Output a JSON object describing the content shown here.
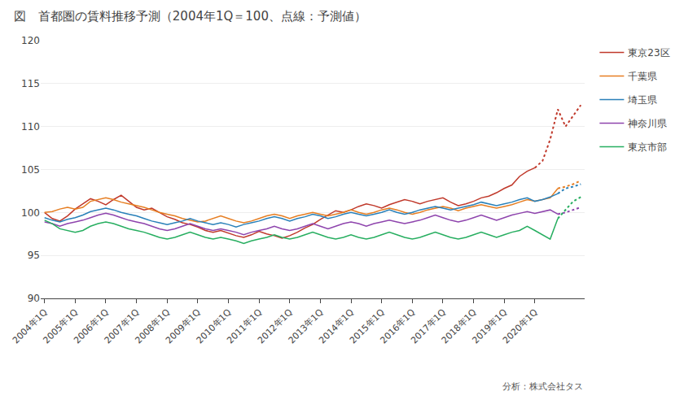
{
  "chart_data": {
    "type": "line",
    "title": "図　首都圏の賃料推移予測（2004年1Q＝100、点線：予測値）",
    "annotations": [
      "分析：株式会社タス"
    ],
    "categories": [
      "2004年1Q",
      null,
      null,
      null,
      "2005年1Q",
      null,
      null,
      null,
      "2006年1Q",
      null,
      null,
      null,
      "2007年1Q",
      null,
      null,
      null,
      "2008年1Q",
      null,
      null,
      null,
      "2009年1Q",
      null,
      null,
      null,
      "2010年1Q",
      null,
      null,
      null,
      "2011年1Q",
      null,
      null,
      null,
      "2012年1Q",
      null,
      null,
      null,
      "2013年1Q",
      null,
      null,
      null,
      "2014年1Q",
      null,
      null,
      null,
      "2015年1Q",
      null,
      null,
      null,
      "2016年1Q",
      null,
      null,
      null,
      "2017年1Q",
      null,
      null,
      null,
      "2018年1Q",
      null,
      null,
      null,
      "2019年1Q",
      null,
      null,
      null,
      "2020年1Q",
      null,
      null,
      null,
      null,
      null,
      null
    ],
    "ylim": [
      90,
      120
    ],
    "yticks": [
      90,
      95,
      100,
      105,
      110,
      115,
      120
    ],
    "grid": true,
    "legend": "right",
    "series": [
      {
        "name": "東京23区",
        "color": "#c0392b",
        "line_style": "solid",
        "values": [
          100.0,
          99.3,
          99.0,
          99.6,
          100.4,
          101.0,
          101.6,
          101.3,
          100.9,
          101.5,
          102.0,
          101.3,
          100.6,
          100.3,
          100.5,
          100.0,
          99.5,
          99.2,
          98.8,
          98.6,
          98.3,
          97.9,
          97.7,
          97.9,
          97.6,
          97.3,
          97.1,
          97.4,
          97.8,
          97.5,
          97.3,
          97.0,
          97.3,
          97.7,
          98.2,
          98.6,
          99.2,
          99.7,
          100.2,
          100.0,
          100.3,
          100.7,
          101.0,
          100.8,
          100.5,
          100.9,
          101.2,
          101.5,
          101.3,
          101.0,
          101.3,
          101.5,
          101.7,
          101.2,
          100.8,
          101.0,
          101.3,
          101.7,
          101.9,
          102.3,
          102.8,
          103.2,
          104.2,
          104.8,
          105.2,
          null,
          null,
          null,
          null,
          null,
          null
        ]
      },
      {
        "name": "東京23区",
        "color": "#c0392b",
        "line_style": "dotted",
        "values": [
          null,
          null,
          null,
          null,
          null,
          null,
          null,
          null,
          null,
          null,
          null,
          null,
          null,
          null,
          null,
          null,
          null,
          null,
          null,
          null,
          null,
          null,
          null,
          null,
          null,
          null,
          null,
          null,
          null,
          null,
          null,
          null,
          null,
          null,
          null,
          null,
          null,
          null,
          null,
          null,
          null,
          null,
          null,
          null,
          null,
          null,
          null,
          null,
          null,
          null,
          null,
          null,
          null,
          null,
          null,
          null,
          null,
          null,
          null,
          null,
          null,
          null,
          null,
          null,
          105.2,
          106.0,
          108.5,
          112.0,
          110.0,
          111.2,
          112.5
        ]
      },
      {
        "name": "千葉県",
        "color": "#e67e22",
        "line_style": "solid",
        "values": [
          100.0,
          100.1,
          100.4,
          100.6,
          100.4,
          100.6,
          101.3,
          101.5,
          101.7,
          101.5,
          101.2,
          101.0,
          100.8,
          100.6,
          100.3,
          100.0,
          99.8,
          99.6,
          99.3,
          99.1,
          98.9,
          99.0,
          99.3,
          99.6,
          99.3,
          99.0,
          98.8,
          99.0,
          99.3,
          99.6,
          99.8,
          99.6,
          99.3,
          99.6,
          99.8,
          100.0,
          99.8,
          99.6,
          99.8,
          100.0,
          100.3,
          100.0,
          99.8,
          100.0,
          100.3,
          100.5,
          100.3,
          100.0,
          99.8,
          100.0,
          100.3,
          100.5,
          100.7,
          100.5,
          100.2,
          100.5,
          100.7,
          100.9,
          100.7,
          100.5,
          100.7,
          100.9,
          101.2,
          101.5,
          101.3,
          101.5,
          101.7,
          102.8,
          null,
          null,
          null
        ]
      },
      {
        "name": "千葉県",
        "color": "#e67e22",
        "line_style": "dotted",
        "values": [
          null,
          null,
          null,
          null,
          null,
          null,
          null,
          null,
          null,
          null,
          null,
          null,
          null,
          null,
          null,
          null,
          null,
          null,
          null,
          null,
          null,
          null,
          null,
          null,
          null,
          null,
          null,
          null,
          null,
          null,
          null,
          null,
          null,
          null,
          null,
          null,
          null,
          null,
          null,
          null,
          null,
          null,
          null,
          null,
          null,
          null,
          null,
          null,
          null,
          null,
          null,
          null,
          null,
          null,
          null,
          null,
          null,
          null,
          null,
          null,
          null,
          null,
          null,
          null,
          null,
          null,
          null,
          102.8,
          103.0,
          103.3,
          103.7
        ]
      },
      {
        "name": "埼玉県",
        "color": "#2980b9",
        "line_style": "solid",
        "values": [
          99.4,
          99.1,
          98.9,
          99.2,
          99.4,
          99.7,
          100.1,
          100.3,
          100.5,
          100.3,
          100.0,
          99.8,
          99.6,
          99.3,
          99.0,
          98.8,
          98.6,
          98.8,
          99.0,
          99.3,
          99.0,
          98.8,
          98.6,
          98.8,
          98.6,
          98.3,
          98.6,
          98.8,
          99.0,
          99.3,
          99.5,
          99.3,
          99.0,
          99.3,
          99.5,
          99.8,
          99.6,
          99.3,
          99.5,
          99.8,
          100.0,
          99.8,
          99.6,
          99.8,
          100.0,
          100.3,
          100.0,
          99.8,
          100.0,
          100.3,
          100.5,
          100.7,
          100.5,
          100.3,
          100.5,
          100.7,
          100.9,
          101.2,
          101.0,
          100.8,
          101.0,
          101.2,
          101.5,
          101.7,
          101.3,
          101.5,
          101.8,
          102.2,
          null,
          null,
          null
        ]
      },
      {
        "name": "埼玉県",
        "color": "#2980b9",
        "line_style": "dotted",
        "values": [
          null,
          null,
          null,
          null,
          null,
          null,
          null,
          null,
          null,
          null,
          null,
          null,
          null,
          null,
          null,
          null,
          null,
          null,
          null,
          null,
          null,
          null,
          null,
          null,
          null,
          null,
          null,
          null,
          null,
          null,
          null,
          null,
          null,
          null,
          null,
          null,
          null,
          null,
          null,
          null,
          null,
          null,
          null,
          null,
          null,
          null,
          null,
          null,
          null,
          null,
          null,
          null,
          null,
          null,
          null,
          null,
          null,
          null,
          null,
          null,
          null,
          null,
          null,
          null,
          null,
          null,
          null,
          102.2,
          102.8,
          103.0,
          103.3
        ]
      },
      {
        "name": "神奈川県",
        "color": "#8e44ad",
        "line_style": "solid",
        "values": [
          98.9,
          98.7,
          98.4,
          98.7,
          98.9,
          99.1,
          99.4,
          99.7,
          99.9,
          99.7,
          99.4,
          99.1,
          98.9,
          98.7,
          98.4,
          98.1,
          97.9,
          98.1,
          98.4,
          98.7,
          98.4,
          98.1,
          97.9,
          98.1,
          97.9,
          97.7,
          97.4,
          97.7,
          97.9,
          98.1,
          98.4,
          98.1,
          97.9,
          98.1,
          98.4,
          98.7,
          98.4,
          98.1,
          98.4,
          98.7,
          98.9,
          98.7,
          98.4,
          98.7,
          98.9,
          99.1,
          98.9,
          98.7,
          98.9,
          99.1,
          99.4,
          99.7,
          99.4,
          99.1,
          98.9,
          99.1,
          99.4,
          99.7,
          99.4,
          99.1,
          99.4,
          99.7,
          99.9,
          100.1,
          99.9,
          100.1,
          100.3,
          99.8,
          null,
          null,
          null
        ]
      },
      {
        "name": "神奈川県",
        "color": "#8e44ad",
        "line_style": "dotted",
        "values": [
          null,
          null,
          null,
          null,
          null,
          null,
          null,
          null,
          null,
          null,
          null,
          null,
          null,
          null,
          null,
          null,
          null,
          null,
          null,
          null,
          null,
          null,
          null,
          null,
          null,
          null,
          null,
          null,
          null,
          null,
          null,
          null,
          null,
          null,
          null,
          null,
          null,
          null,
          null,
          null,
          null,
          null,
          null,
          null,
          null,
          null,
          null,
          null,
          null,
          null,
          null,
          null,
          null,
          null,
          null,
          null,
          null,
          null,
          null,
          null,
          null,
          null,
          null,
          null,
          null,
          null,
          null,
          99.8,
          100.0,
          100.3,
          100.6
        ]
      },
      {
        "name": "東京市部",
        "color": "#27ae60",
        "line_style": "solid",
        "values": [
          99.1,
          98.7,
          98.1,
          97.9,
          97.7,
          97.9,
          98.4,
          98.7,
          98.9,
          98.7,
          98.4,
          98.1,
          97.9,
          97.7,
          97.4,
          97.1,
          96.9,
          97.1,
          97.4,
          97.7,
          97.4,
          97.1,
          96.9,
          97.1,
          96.9,
          96.7,
          96.4,
          96.7,
          96.9,
          97.1,
          97.4,
          97.1,
          96.9,
          97.1,
          97.4,
          97.7,
          97.4,
          97.1,
          96.9,
          97.1,
          97.4,
          97.1,
          96.9,
          97.1,
          97.4,
          97.7,
          97.4,
          97.1,
          96.9,
          97.1,
          97.4,
          97.7,
          97.4,
          97.1,
          96.9,
          97.1,
          97.4,
          97.7,
          97.4,
          97.1,
          97.4,
          97.7,
          97.9,
          98.4,
          97.9,
          97.4,
          96.9,
          99.3,
          null,
          null,
          null
        ]
      },
      {
        "name": "東京市部",
        "color": "#27ae60",
        "line_style": "dotted",
        "values": [
          null,
          null,
          null,
          null,
          null,
          null,
          null,
          null,
          null,
          null,
          null,
          null,
          null,
          null,
          null,
          null,
          null,
          null,
          null,
          null,
          null,
          null,
          null,
          null,
          null,
          null,
          null,
          null,
          null,
          null,
          null,
          null,
          null,
          null,
          null,
          null,
          null,
          null,
          null,
          null,
          null,
          null,
          null,
          null,
          null,
          null,
          null,
          null,
          null,
          null,
          null,
          null,
          null,
          null,
          null,
          null,
          null,
          null,
          null,
          null,
          null,
          null,
          null,
          null,
          null,
          null,
          null,
          99.3,
          100.3,
          101.3,
          101.8
        ]
      }
    ]
  }
}
